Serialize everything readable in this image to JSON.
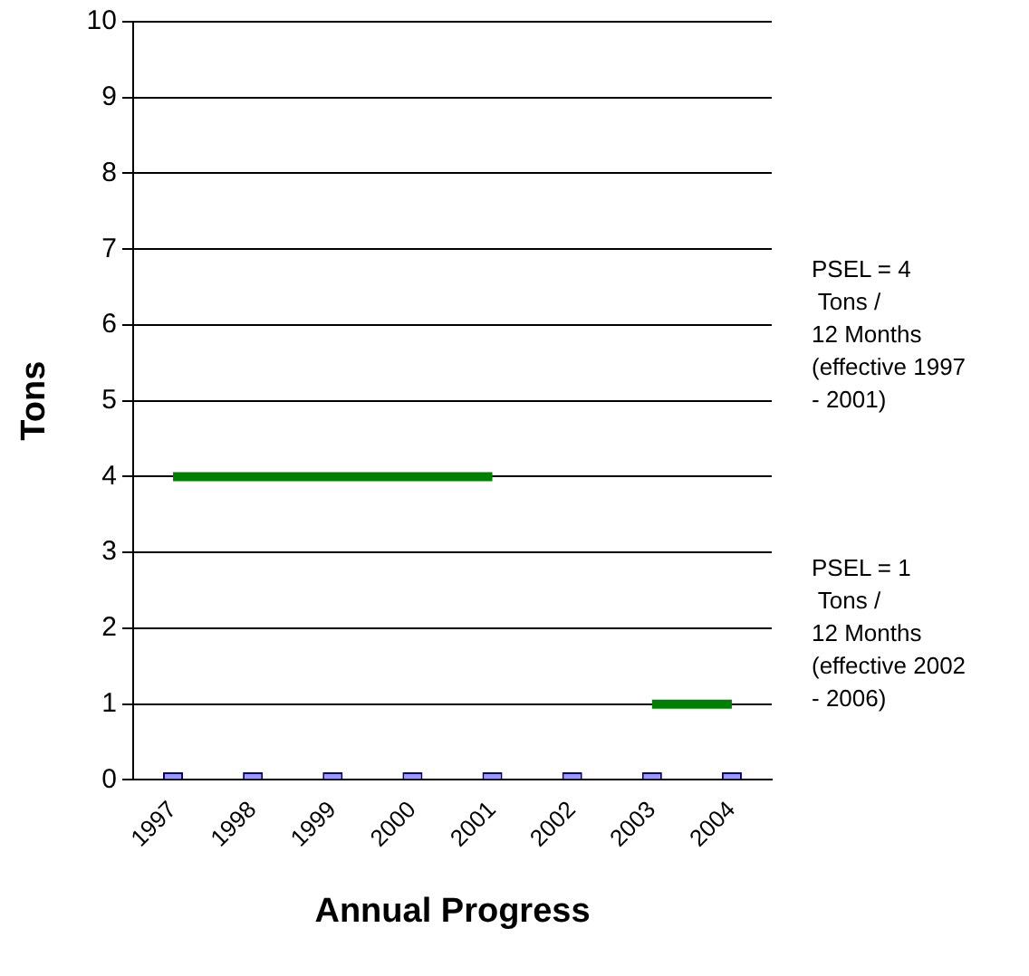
{
  "chart_data": {
    "type": "bar",
    "xlabel": "Annual Progress",
    "ylabel": "Tons",
    "categories": [
      "1997",
      "1998",
      "1999",
      "2000",
      "2001",
      "2002",
      "2003",
      "2004"
    ],
    "series": [
      {
        "color": "#9999ff",
        "values": [
          0.1,
          0.1,
          0.1,
          0.1,
          0.1,
          0.1,
          0.1,
          0.1
        ]
      },
      {
        "type": "line",
        "color": "#008000",
        "values": [
          4,
          4,
          4,
          4,
          4,
          null,
          null,
          null
        ]
      },
      {
        "type": "line",
        "color": "#008000",
        "values": [
          null,
          null,
          null,
          null,
          null,
          null,
          1,
          1
        ]
      }
    ],
    "ylim": [
      0,
      10
    ],
    "yticks": [
      0,
      1,
      2,
      3,
      4,
      5,
      6,
      7,
      8,
      9,
      10
    ],
    "grid": "y",
    "legend": false,
    "marker": "none",
    "annotations": [
      "PSEL = 4\n Tons /\n12 Months\n(effective 1997\n- 2001)",
      "PSEL = 1\n Tons /\n12 Months\n(effective 2002\n- 2006)"
    ]
  }
}
